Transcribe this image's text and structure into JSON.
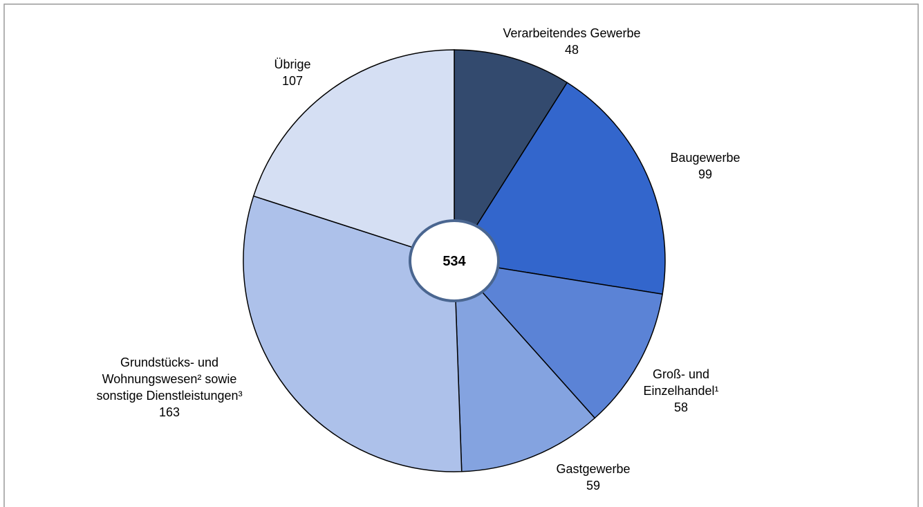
{
  "chart_data": {
    "type": "pie",
    "categories": [
      "Verarbeitendes Gewerbe",
      "Baugewerbe",
      "Groß- und\nEinzelhandel¹",
      "Gastgewerbe",
      "Grundstücks- und\nWohnungswesen² sowie\nsonstige Dienstleistungen³",
      "Übrige"
    ],
    "values": [
      48,
      99,
      58,
      59,
      163,
      107
    ],
    "colors": [
      "#334a6e",
      "#3366cc",
      "#5b83d6",
      "#84a3e0",
      "#adc1ea",
      "#d5dff3"
    ],
    "total": 534
  }
}
